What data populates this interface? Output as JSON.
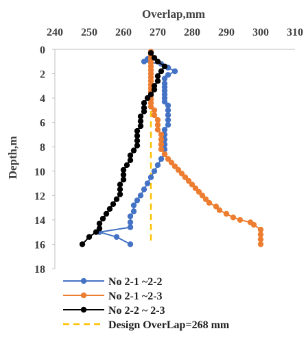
{
  "chart_data": {
    "type": "scatter",
    "xlabel": "Overlap,mm",
    "ylabel": "Depth,m",
    "xlim": [
      240,
      310
    ],
    "ylim": [
      0,
      18
    ],
    "y_inverted": true,
    "x_axis_position": "top",
    "grid": false,
    "legend_position": "bottom",
    "xticks": [
      "240",
      "250",
      "260",
      "270",
      "280",
      "290",
      "300",
      "310"
    ],
    "yticks": [
      "0",
      "2",
      "4",
      "6",
      "8",
      "10",
      "12",
      "14",
      "16",
      "18"
    ],
    "series": [
      {
        "name": "No 2-1 ~2-2",
        "color": "#4472C4",
        "marker": "circle",
        "points": [
          [
            268,
            0.2
          ],
          [
            268,
            0.5
          ],
          [
            267,
            0.8
          ],
          [
            266,
            1.0
          ],
          [
            271,
            1.2
          ],
          [
            273,
            1.5
          ],
          [
            275,
            1.8
          ],
          [
            273,
            2.1
          ],
          [
            272,
            2.4
          ],
          [
            272,
            2.8
          ],
          [
            272,
            3.1
          ],
          [
            272,
            3.4
          ],
          [
            272,
            3.7
          ],
          [
            272,
            4.0
          ],
          [
            272,
            4.3
          ],
          [
            273,
            4.6
          ],
          [
            273,
            5.0
          ],
          [
            273,
            5.4
          ],
          [
            273,
            5.8
          ],
          [
            273,
            6.2
          ],
          [
            272,
            6.6
          ],
          [
            272,
            7.0
          ],
          [
            272,
            7.4
          ],
          [
            272,
            7.8
          ],
          [
            272,
            8.2
          ],
          [
            272,
            8.6
          ],
          [
            271,
            9.0
          ],
          [
            270,
            9.5
          ],
          [
            269,
            10.0
          ],
          [
            268,
            10.5
          ],
          [
            267,
            11.0
          ],
          [
            266,
            11.5
          ],
          [
            265,
            12.0
          ],
          [
            264,
            12.4
          ],
          [
            263,
            12.8
          ],
          [
            263,
            13.3
          ],
          [
            262,
            13.7
          ],
          [
            262,
            14.2
          ],
          [
            262,
            14.6
          ],
          [
            253,
            15.0
          ],
          [
            258,
            15.4
          ],
          [
            262,
            16.0
          ]
        ]
      },
      {
        "name": "No 2-1 ~2-3",
        "color": "#ED7D31",
        "marker": "circle",
        "points": [
          [
            268,
            0.2
          ],
          [
            268,
            0.5
          ],
          [
            268,
            0.8
          ],
          [
            268,
            1.1
          ],
          [
            268,
            1.4
          ],
          [
            268,
            1.7
          ],
          [
            268,
            2.0
          ],
          [
            268,
            2.3
          ],
          [
            268,
            2.6
          ],
          [
            268,
            2.9
          ],
          [
            268,
            3.2
          ],
          [
            268,
            3.5
          ],
          [
            268,
            3.8
          ],
          [
            268,
            4.1
          ],
          [
            268,
            4.4
          ],
          [
            268,
            4.7
          ],
          [
            269,
            5.0
          ],
          [
            269,
            5.4
          ],
          [
            270,
            5.8
          ],
          [
            270,
            6.2
          ],
          [
            270,
            6.6
          ],
          [
            271,
            7.0
          ],
          [
            271,
            7.4
          ],
          [
            271,
            7.8
          ],
          [
            271,
            8.2
          ],
          [
            272,
            8.6
          ],
          [
            273,
            9.0
          ],
          [
            274,
            9.3
          ],
          [
            275,
            9.6
          ],
          [
            276,
            9.9
          ],
          [
            277,
            10.2
          ],
          [
            278,
            10.5
          ],
          [
            279,
            10.8
          ],
          [
            280,
            11.1
          ],
          [
            281,
            11.4
          ],
          [
            282,
            11.7
          ],
          [
            283,
            12.0
          ],
          [
            284,
            12.3
          ],
          [
            285,
            12.6
          ],
          [
            287,
            12.9
          ],
          [
            288,
            13.2
          ],
          [
            290,
            13.5
          ],
          [
            292,
            13.8
          ],
          [
            294,
            14.0
          ],
          [
            297,
            14.2
          ],
          [
            298,
            14.4
          ],
          [
            300,
            14.8
          ],
          [
            300,
            15.2
          ],
          [
            300,
            15.6
          ],
          [
            300,
            16.0
          ]
        ]
      },
      {
        "name": "No 2-2 ~ 2-3",
        "color": "#000000",
        "marker": "circle",
        "points": [
          [
            268,
            0.3
          ],
          [
            269,
            0.7
          ],
          [
            270,
            1.0
          ],
          [
            272,
            1.4
          ],
          [
            271,
            1.8
          ],
          [
            270,
            2.2
          ],
          [
            270,
            2.6
          ],
          [
            269,
            3.0
          ],
          [
            269,
            3.3
          ],
          [
            268,
            3.7
          ],
          [
            267,
            4.0
          ],
          [
            266,
            4.4
          ],
          [
            266,
            4.8
          ],
          [
            266,
            5.1
          ],
          [
            265,
            5.5
          ],
          [
            265,
            5.9
          ],
          [
            265,
            6.3
          ],
          [
            264,
            6.7
          ],
          [
            264,
            7.1
          ],
          [
            264,
            7.5
          ],
          [
            264,
            7.9
          ],
          [
            263,
            8.3
          ],
          [
            262,
            8.7
          ],
          [
            262,
            9.1
          ],
          [
            261,
            9.5
          ],
          [
            260,
            9.9
          ],
          [
            260,
            10.3
          ],
          [
            260,
            10.7
          ],
          [
            259,
            11.1
          ],
          [
            259,
            11.5
          ],
          [
            259,
            11.9
          ],
          [
            258,
            12.3
          ],
          [
            257,
            12.7
          ],
          [
            256,
            13.1
          ],
          [
            255,
            13.5
          ],
          [
            254,
            13.9
          ],
          [
            253,
            14.3
          ],
          [
            253,
            14.7
          ],
          [
            252,
            15.0
          ],
          [
            250,
            15.4
          ],
          [
            248,
            16.0
          ]
        ]
      },
      {
        "name": "Design OverLap=268 mm",
        "color": "#FFC000",
        "line_style": "dashed",
        "x_constant": 268
      }
    ]
  }
}
